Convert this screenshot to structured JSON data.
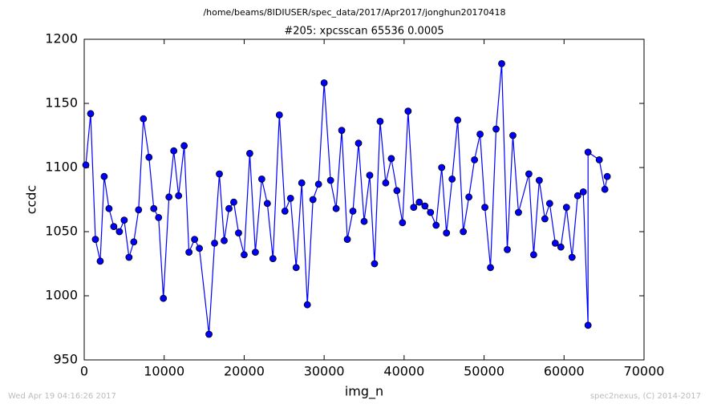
{
  "chart_data": {
    "type": "line",
    "suptitle": "/home/beams/8IDIUSER/spec_data/2017/Apr2017/jonghun20170418",
    "title": "#205: xpcsscan 65536 0.0005",
    "xlabel": "img_n",
    "ylabel": "ccdc",
    "footer_left": "Wed Apr 19 04:16:26 2017",
    "footer_right": "spec2nexus, (C) 2014-2017",
    "xlim": [
      0,
      70000
    ],
    "ylim": [
      950,
      1200
    ],
    "xticks": [
      0,
      10000,
      20000,
      30000,
      40000,
      50000,
      60000,
      70000
    ],
    "yticks": [
      950,
      1000,
      1050,
      1100,
      1150,
      1200
    ],
    "grid": false,
    "series": [
      {
        "color": "#0000ff",
        "x": [
          200,
          800,
          1400,
          2000,
          2500,
          3100,
          3700,
          4400,
          5000,
          5600,
          6200,
          6800,
          7400,
          8100,
          8700,
          9300,
          9900,
          10600,
          11200,
          11800,
          12500,
          13100,
          13800,
          14400,
          15600,
          16300,
          16900,
          17500,
          18100,
          18700,
          19300,
          20000,
          20700,
          21400,
          22200,
          22900,
          23600,
          24400,
          25100,
          25800,
          26500,
          27200,
          27900,
          28600,
          29300,
          30000,
          30800,
          31500,
          32200,
          32900,
          33600,
          34300,
          35000,
          35700,
          36300,
          37000,
          37700,
          38400,
          39100,
          39800,
          40500,
          41200,
          41900,
          42600,
          43300,
          44000,
          44700,
          45300,
          46000,
          46700,
          47400,
          48100,
          48800,
          49500,
          50100,
          50800,
          51500,
          52200,
          52900,
          53600,
          54300,
          55600,
          56200,
          56900,
          57600,
          58200,
          58900,
          59600,
          60300,
          61000,
          61700,
          62400,
          63000,
          63000,
          64400,
          65100,
          65400
        ],
        "values": [
          1102,
          1142,
          1044,
          1027,
          1093,
          1068,
          1054,
          1050,
          1059,
          1030,
          1042,
          1067,
          1138,
          1108,
          1068,
          1061,
          998,
          1077,
          1113,
          1078,
          1117,
          1034,
          1044,
          1037,
          970,
          1041,
          1095,
          1043,
          1068,
          1073,
          1049,
          1032,
          1111,
          1034,
          1091,
          1072,
          1029,
          1141,
          1066,
          1076,
          1022,
          1088,
          993,
          1075,
          1087,
          1166,
          1090,
          1068,
          1129,
          1044,
          1066,
          1119,
          1058,
          1094,
          1025,
          1136,
          1088,
          1107,
          1082,
          1057,
          1144,
          1069,
          1073,
          1070,
          1065,
          1055,
          1100,
          1049,
          1091,
          1137,
          1050,
          1077,
          1106,
          1126,
          1069,
          1022,
          1130,
          1181,
          1036,
          1125,
          1065,
          1095,
          1032,
          1090,
          1060,
          1072,
          1041,
          1038,
          1069,
          1030,
          1078,
          1081,
          977,
          1112,
          1106,
          1083,
          1093
        ]
      }
    ]
  }
}
